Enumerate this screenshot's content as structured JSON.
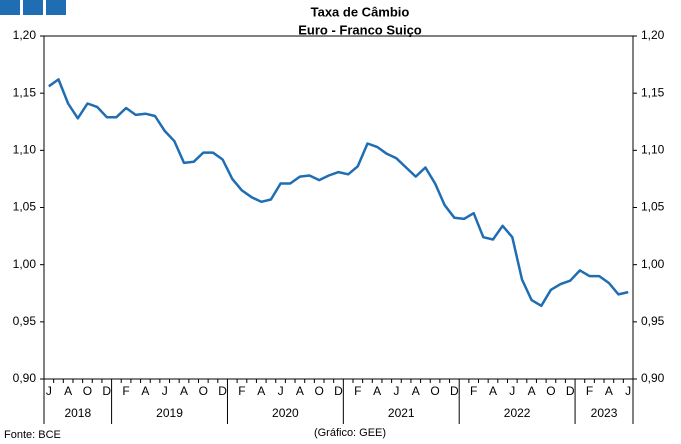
{
  "chart_data": {
    "type": "line",
    "title": "Taxa de Câmbio",
    "subtitle": "Euro - Franco Suiço",
    "source": "Fonte: BCE",
    "credit": "(Gráfico: GEE)",
    "groups": [
      {
        "label": "2018",
        "categories": [
          "J",
          null,
          "A",
          null,
          "O",
          null,
          "D"
        ]
      },
      {
        "label": "2019",
        "categories": [
          null,
          "F",
          null,
          "A",
          null,
          "J",
          null,
          "A",
          null,
          "O",
          null,
          "D"
        ]
      },
      {
        "label": "2020",
        "categories": [
          null,
          "F",
          null,
          "A",
          null,
          "J",
          null,
          "A",
          null,
          "O",
          null,
          "D"
        ]
      },
      {
        "label": "2021",
        "categories": [
          null,
          "F",
          null,
          "A",
          null,
          "J",
          null,
          "A",
          null,
          "O",
          null,
          "D"
        ]
      },
      {
        "label": "2022",
        "categories": [
          null,
          "F",
          null,
          "A",
          null,
          "J",
          null,
          "A",
          null,
          "O",
          null,
          "D"
        ]
      },
      {
        "label": "2023",
        "categories": [
          null,
          "F",
          null,
          "A",
          null,
          "J"
        ]
      }
    ],
    "series": [
      {
        "color": "#1f6db2",
        "values": [
          1.156,
          1.162,
          1.141,
          1.128,
          1.141,
          1.138,
          1.129,
          1.129,
          1.137,
          1.131,
          1.132,
          1.13,
          1.117,
          1.108,
          1.089,
          1.09,
          1.098,
          1.098,
          1.092,
          1.075,
          1.065,
          1.059,
          1.055,
          1.057,
          1.071,
          1.071,
          1.077,
          1.078,
          1.074,
          1.078,
          1.081,
          1.079,
          1.086,
          1.106,
          1.103,
          1.097,
          1.093,
          1.085,
          1.077,
          1.085,
          1.071,
          1.052,
          1.041,
          1.04,
          1.045,
          1.024,
          1.022,
          1.034,
          1.024,
          0.987,
          0.969,
          0.964,
          0.978,
          0.983,
          0.986,
          0.995,
          0.99,
          0.99,
          0.984,
          0.974,
          0.976
        ]
      }
    ],
    "ylim": [
      0.9,
      1.2
    ],
    "yticks": [
      {
        "value": 0.9,
        "label": "0,90"
      },
      {
        "value": 0.95,
        "label": "0,95"
      },
      {
        "value": 1.0,
        "label": "1,00"
      },
      {
        "value": 1.05,
        "label": "1,05"
      },
      {
        "value": 1.1,
        "label": "1,10"
      },
      {
        "value": 1.15,
        "label": "1,15"
      },
      {
        "value": 1.2,
        "label": "1,20"
      }
    ],
    "y2lim": [
      0.9,
      1.2
    ],
    "y2ticks": [
      {
        "value": 0.9,
        "label": "0,90"
      },
      {
        "value": 0.95,
        "label": "0,95"
      },
      {
        "value": 1.0,
        "label": "1,00"
      },
      {
        "value": 1.05,
        "label": "1,05"
      },
      {
        "value": 1.1,
        "label": "1,10"
      },
      {
        "value": 1.15,
        "label": "1,15"
      },
      {
        "value": 1.2,
        "label": "1,20"
      }
    ],
    "grid": false
  }
}
